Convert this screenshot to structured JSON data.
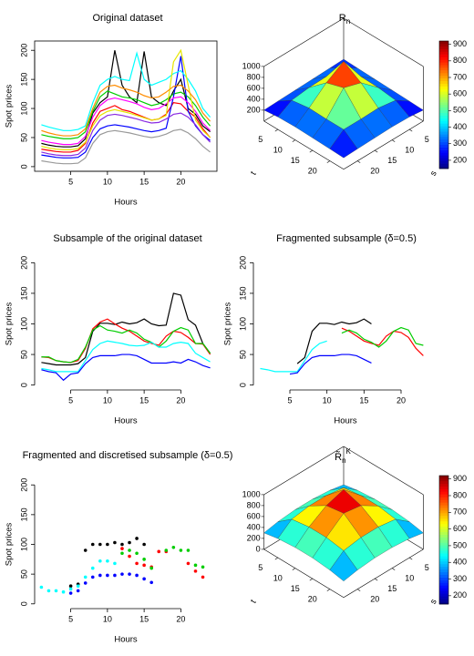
{
  "chart_data": [
    {
      "type": "line",
      "title": "Original dataset",
      "xlabel": "Hours",
      "ylabel": "Spot prices",
      "box": true,
      "x": [
        1,
        2,
        3,
        4,
        5,
        6,
        7,
        8,
        9,
        10,
        11,
        12,
        13,
        14,
        15,
        16,
        17,
        18,
        19,
        20,
        21,
        22,
        23,
        24
      ],
      "xlim": [
        0.08,
        24.92
      ],
      "xticks": [
        5,
        10,
        15,
        20
      ],
      "ylim": [
        -8,
        216
      ],
      "yticks": [
        0,
        50,
        100,
        150,
        200
      ],
      "series": [
        {
          "color": "#000000",
          "values": [
            40,
            37,
            35,
            34,
            34,
            36,
            48,
            92,
            110,
            120,
            200,
            140,
            120,
            110,
            198,
            120,
            110,
            105,
            130,
            150,
            100,
            90,
            70,
            60
          ]
        },
        {
          "color": "#ff0000",
          "values": [
            30,
            28,
            26,
            25,
            25,
            28,
            40,
            75,
            95,
            100,
            105,
            98,
            95,
            90,
            85,
            80,
            82,
            90,
            110,
            108,
            95,
            85,
            65,
            50
          ]
        },
        {
          "color": "#00cd00",
          "values": [
            55,
            52,
            50,
            48,
            48,
            50,
            60,
            95,
            120,
            130,
            125,
            120,
            118,
            115,
            110,
            105,
            108,
            115,
            125,
            128,
            120,
            105,
            85,
            70
          ]
        },
        {
          "color": "#0000ff",
          "values": [
            20,
            18,
            16,
            15,
            15,
            16,
            25,
            50,
            65,
            70,
            72,
            70,
            68,
            65,
            62,
            60,
            62,
            66,
            120,
            190,
            95,
            70,
            55,
            45
          ]
        },
        {
          "color": "#00ffff",
          "values": [
            72,
            68,
            65,
            62,
            62,
            64,
            70,
            110,
            140,
            150,
            155,
            150,
            148,
            195,
            150,
            140,
            145,
            150,
            160,
            165,
            150,
            130,
            100,
            85
          ]
        },
        {
          "color": "#ff00ff",
          "values": [
            45,
            42,
            40,
            38,
            38,
            40,
            52,
            85,
            105,
            115,
            118,
            115,
            112,
            108,
            102,
            98,
            100,
            108,
            118,
            120,
            110,
            95,
            75,
            62
          ]
        },
        {
          "color": "#e6e600",
          "values": [
            35,
            32,
            30,
            29,
            29,
            31,
            42,
            70,
            88,
            95,
            98,
            95,
            92,
            88,
            84,
            80,
            82,
            88,
            180,
            200,
            140,
            80,
            62,
            50
          ]
        },
        {
          "color": "#999999",
          "values": [
            10,
            8,
            6,
            5,
            5,
            6,
            15,
            40,
            55,
            60,
            62,
            60,
            58,
            55,
            52,
            50,
            52,
            56,
            62,
            64,
            58,
            48,
            35,
            25
          ]
        },
        {
          "color": "#ff8c00",
          "values": [
            62,
            58,
            55,
            53,
            53,
            55,
            65,
            100,
            128,
            138,
            140,
            135,
            132,
            128,
            122,
            118,
            120,
            128,
            138,
            140,
            130,
            115,
            92,
            78
          ]
        },
        {
          "color": "#8a2be2",
          "values": [
            25,
            22,
            20,
            19,
            19,
            21,
            32,
            62,
            80,
            88,
            90,
            88,
            85,
            82,
            78,
            75,
            76,
            82,
            90,
            92,
            85,
            72,
            55,
            42
          ]
        }
      ]
    },
    {
      "type": "surface",
      "title": "R",
      "title_sub": "n",
      "xlabel": "t",
      "ylabel": "s",
      "grid": [
        1,
        5,
        10,
        15,
        20,
        24
      ],
      "zlim": [
        0,
        1000
      ],
      "zticks": [
        200,
        400,
        600,
        800,
        1000
      ],
      "xticks": [
        5,
        10,
        15,
        20
      ],
      "yticks": [
        5,
        10,
        15,
        20
      ],
      "z": [
        [
          250,
          240,
          230,
          220,
          210,
          200
        ],
        [
          240,
          400,
          430,
          420,
          380,
          230
        ],
        [
          230,
          430,
          900,
          700,
          430,
          240
        ],
        [
          220,
          420,
          700,
          800,
          420,
          230
        ],
        [
          210,
          380,
          430,
          420,
          420,
          220
        ],
        [
          200,
          230,
          240,
          230,
          220,
          210
        ]
      ],
      "color_lim": [
        150,
        920
      ],
      "colorbar_ticks": [
        200,
        300,
        400,
        500,
        600,
        700,
        800,
        900
      ]
    },
    {
      "type": "line",
      "title": "Subsample of the original dataset",
      "xlabel": "Hours",
      "ylabel": "Spot prices",
      "x": [
        1,
        2,
        3,
        4,
        5,
        6,
        7,
        8,
        9,
        10,
        11,
        12,
        13,
        14,
        15,
        16,
        17,
        18,
        19,
        20,
        21,
        22,
        23,
        24
      ],
      "xlim": [
        0.08,
        24.92
      ],
      "xticks": [
        5,
        10,
        15,
        20
      ],
      "ylim": [
        -8,
        208
      ],
      "yticks": [
        0,
        50,
        100,
        150,
        200
      ],
      "series": [
        {
          "color": "#000000",
          "values": [
            37,
            35,
            33,
            33,
            33,
            35,
            45,
            88,
            101,
            101,
            99,
            103,
            100,
            102,
            108,
            100,
            97,
            98,
            150,
            147,
            107,
            98,
            68,
            52
          ]
        },
        {
          "color": "#ff0000",
          "values": [
            46,
            45,
            40,
            38,
            37,
            40,
            60,
            92,
            103,
            108,
            100,
            93,
            88,
            80,
            72,
            68,
            65,
            80,
            88,
            86,
            78,
            68,
            67,
            50
          ]
        },
        {
          "color": "#00cd00",
          "values": [
            46,
            46,
            40,
            38,
            37,
            42,
            62,
            90,
            97,
            90,
            88,
            85,
            90,
            85,
            75,
            70,
            62,
            72,
            88,
            94,
            90,
            68,
            68,
            52
          ]
        },
        {
          "color": "#00ffff",
          "values": [
            27,
            25,
            22,
            22,
            22,
            22,
            40,
            58,
            68,
            72,
            70,
            68,
            65,
            64,
            65,
            70,
            62,
            62,
            68,
            70,
            68,
            52,
            45,
            38
          ]
        },
        {
          "color": "#0000ff",
          "values": [
            25,
            22,
            20,
            8,
            18,
            20,
            35,
            45,
            48,
            48,
            48,
            50,
            50,
            48,
            42,
            36,
            36,
            36,
            38,
            36,
            42,
            38,
            32,
            28
          ]
        }
      ]
    },
    {
      "type": "line",
      "title": "Fragmented subsample (δ=0.5)",
      "xlabel": "Hours",
      "ylabel": "Spot prices",
      "x": [
        1,
        2,
        3,
        4,
        5,
        6,
        7,
        8,
        9,
        10,
        11,
        12,
        13,
        14,
        15,
        16,
        17,
        18,
        19,
        20,
        21,
        22,
        23,
        24
      ],
      "xlim": [
        0.08,
        24.92
      ],
      "xticks": [
        5,
        10,
        15,
        20
      ],
      "ylim": [
        -8,
        208
      ],
      "yticks": [
        0,
        50,
        100,
        150,
        200
      ],
      "series": [
        {
          "color": "#000000",
          "values": [
            null,
            null,
            null,
            null,
            null,
            35,
            45,
            88,
            101,
            101,
            99,
            103,
            100,
            102,
            108,
            100,
            null,
            null,
            null,
            null,
            null,
            null,
            null,
            null
          ]
        },
        {
          "color": "#ff0000",
          "values": [
            null,
            null,
            null,
            null,
            null,
            null,
            null,
            null,
            null,
            null,
            null,
            93,
            88,
            80,
            72,
            68,
            65,
            80,
            88,
            86,
            78,
            60,
            48,
            null
          ]
        },
        {
          "color": "#00cd00",
          "values": [
            null,
            null,
            null,
            null,
            null,
            null,
            null,
            null,
            null,
            null,
            null,
            85,
            90,
            85,
            75,
            70,
            62,
            72,
            88,
            94,
            90,
            68,
            65,
            null
          ]
        },
        {
          "color": "#00ffff",
          "values": [
            27,
            25,
            22,
            22,
            22,
            22,
            40,
            58,
            68,
            72,
            null,
            null,
            null,
            null,
            null,
            null,
            null,
            null,
            null,
            null,
            null,
            null,
            null,
            null
          ]
        },
        {
          "color": "#0000ff",
          "values": [
            null,
            null,
            null,
            null,
            18,
            20,
            35,
            45,
            48,
            48,
            48,
            50,
            50,
            48,
            42,
            36,
            null,
            null,
            null,
            null,
            null,
            null,
            null,
            null
          ]
        }
      ]
    },
    {
      "type": "scatter",
      "title": "Fragmented and discretised subsample (δ=0.5)",
      "xlabel": "Hours",
      "ylabel": "Spot prices",
      "x": [
        1,
        2,
        3,
        4,
        5,
        6,
        7,
        8,
        9,
        10,
        11,
        12,
        13,
        14,
        15,
        16,
        17,
        18,
        19,
        20,
        21,
        22,
        23,
        24
      ],
      "xlim": [
        0.08,
        24.92
      ],
      "xticks": [
        5,
        10,
        15,
        20
      ],
      "ylim": [
        -8,
        208
      ],
      "yticks": [
        0,
        50,
        100,
        150,
        200
      ],
      "series": [
        {
          "color": "#000000",
          "values": [
            null,
            null,
            null,
            null,
            30,
            33,
            90,
            100,
            100,
            100,
            103,
            100,
            103,
            110,
            100,
            null,
            null,
            null,
            null,
            null,
            null,
            null,
            null,
            null
          ]
        },
        {
          "color": "#ff0000",
          "values": [
            null,
            null,
            null,
            null,
            null,
            null,
            null,
            null,
            null,
            null,
            null,
            93,
            80,
            68,
            65,
            62,
            88,
            88,
            null,
            null,
            68,
            55,
            45,
            null
          ]
        },
        {
          "color": "#00cd00",
          "values": [
            null,
            null,
            null,
            null,
            null,
            null,
            null,
            null,
            null,
            null,
            null,
            85,
            90,
            85,
            75,
            60,
            null,
            90,
            95,
            90,
            90,
            65,
            62,
            null
          ]
        },
        {
          "color": "#00ffff",
          "values": [
            28,
            22,
            22,
            20,
            25,
            30,
            45,
            60,
            72,
            72,
            68,
            null,
            null,
            null,
            null,
            null,
            null,
            null,
            null,
            null,
            null,
            null,
            null,
            null
          ]
        },
        {
          "color": "#0000ff",
          "values": [
            null,
            null,
            null,
            null,
            18,
            22,
            35,
            45,
            48,
            48,
            48,
            50,
            50,
            48,
            42,
            36,
            null,
            null,
            null,
            null,
            null,
            null,
            null,
            null
          ]
        }
      ]
    },
    {
      "type": "surface",
      "title": "R̃",
      "title_sub": "n",
      "title_sup": "K",
      "xlabel": "t",
      "ylabel": "s",
      "grid": [
        1,
        5,
        10,
        15,
        20,
        24
      ],
      "zlim": [
        0,
        1000
      ],
      "zticks": [
        0,
        200,
        400,
        600,
        800,
        1000
      ],
      "xticks": [
        5,
        10,
        15,
        20
      ],
      "yticks": [
        5,
        10,
        15,
        20
      ],
      "z": [
        [
          300,
          350,
          380,
          380,
          350,
          300
        ],
        [
          350,
          550,
          600,
          600,
          550,
          350
        ],
        [
          380,
          600,
          900,
          800,
          600,
          380
        ],
        [
          380,
          600,
          800,
          850,
          600,
          380
        ],
        [
          350,
          550,
          600,
          600,
          550,
          350
        ],
        [
          300,
          350,
          380,
          380,
          350,
          300
        ]
      ],
      "color_lim": [
        150,
        920
      ],
      "colorbar_ticks": [
        200,
        300,
        400,
        500,
        600,
        700,
        800,
        900
      ]
    }
  ]
}
